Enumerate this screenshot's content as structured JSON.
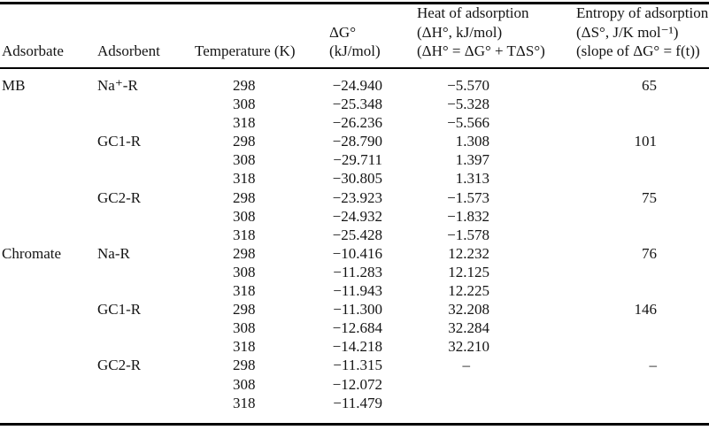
{
  "header": {
    "adsorbate": "Adsorbate",
    "adsorbent": "Adsorbent",
    "temperature": "Temperature (K)",
    "delta_g": {
      "line1": "ΔG°",
      "line2": "(kJ/mol)"
    },
    "delta_h": {
      "line1": "Heat of adsorption",
      "line2": "(ΔH°, kJ/mol)",
      "line3": "(ΔH° = ΔG° + TΔS°)"
    },
    "delta_s": {
      "line1": "Entropy of adsorption",
      "line2": "(ΔS°, J/K mol⁻¹)",
      "line3": "(slope of ΔG° = f(t))"
    }
  },
  "rows": [
    {
      "adsorbate": "MB",
      "adsorbent": "Na⁺-R",
      "temperature": "298",
      "delta_g": "−24.940",
      "delta_h": "−5.570",
      "delta_s": "65"
    },
    {
      "adsorbate": "",
      "adsorbent": "",
      "temperature": "308",
      "delta_g": "−25.348",
      "delta_h": "−5.328",
      "delta_s": ""
    },
    {
      "adsorbate": "",
      "adsorbent": "",
      "temperature": "318",
      "delta_g": "−26.236",
      "delta_h": "−5.566",
      "delta_s": ""
    },
    {
      "adsorbate": "",
      "adsorbent": "GC1-R",
      "temperature": "298",
      "delta_g": "−28.790",
      "delta_h": "1.308",
      "delta_s": "101"
    },
    {
      "adsorbate": "",
      "adsorbent": "",
      "temperature": "308",
      "delta_g": "−29.711",
      "delta_h": "1.397",
      "delta_s": ""
    },
    {
      "adsorbate": "",
      "adsorbent": "",
      "temperature": "318",
      "delta_g": "−30.805",
      "delta_h": "1.313",
      "delta_s": ""
    },
    {
      "adsorbate": "",
      "adsorbent": "GC2-R",
      "temperature": "298",
      "delta_g": "−23.923",
      "delta_h": "−1.573",
      "delta_s": "75"
    },
    {
      "adsorbate": "",
      "adsorbent": "",
      "temperature": "308",
      "delta_g": "−24.932",
      "delta_h": "−1.832",
      "delta_s": ""
    },
    {
      "adsorbate": "",
      "adsorbent": "",
      "temperature": "318",
      "delta_g": "−25.428",
      "delta_h": "−1.578",
      "delta_s": ""
    },
    {
      "adsorbate": "Chromate",
      "adsorbent": "Na-R",
      "temperature": "298",
      "delta_g": "−10.416",
      "delta_h": "12.232",
      "delta_s": "76"
    },
    {
      "adsorbate": "",
      "adsorbent": "",
      "temperature": "308",
      "delta_g": "−11.283",
      "delta_h": "12.125",
      "delta_s": ""
    },
    {
      "adsorbate": "",
      "adsorbent": "",
      "temperature": "318",
      "delta_g": "−11.943",
      "delta_h": "12.225",
      "delta_s": ""
    },
    {
      "adsorbate": "",
      "adsorbent": "GC1-R",
      "temperature": "298",
      "delta_g": "−11.300",
      "delta_h": "32.208",
      "delta_s": "146"
    },
    {
      "adsorbate": "",
      "adsorbent": "",
      "temperature": "308",
      "delta_g": "−12.684",
      "delta_h": "32.284",
      "delta_s": ""
    },
    {
      "adsorbate": "",
      "adsorbent": "",
      "temperature": "318",
      "delta_g": "−14.218",
      "delta_h": "32.210",
      "delta_s": ""
    },
    {
      "adsorbate": "",
      "adsorbent": "GC2-R",
      "temperature": "298",
      "delta_g": "−11.315",
      "delta_h": "–",
      "delta_s": "–"
    },
    {
      "adsorbate": "",
      "adsorbent": "",
      "temperature": "308",
      "delta_g": "−12.072",
      "delta_h": "",
      "delta_s": ""
    },
    {
      "adsorbate": "",
      "adsorbent": "",
      "temperature": "318",
      "delta_g": "−11.479",
      "delta_h": "",
      "delta_s": ""
    }
  ]
}
